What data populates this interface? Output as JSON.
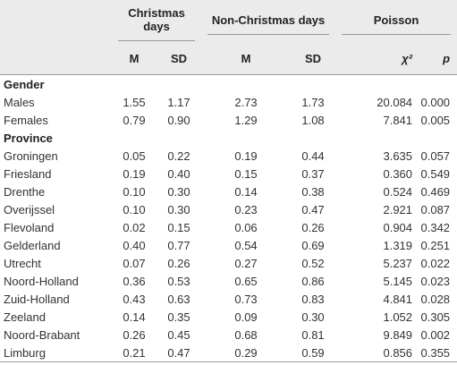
{
  "table": {
    "groups": [
      "Christmas days",
      "Non-Christmas days",
      "Poisson"
    ],
    "columns": [
      "M",
      "SD",
      "M",
      "SD",
      "χ²",
      "p"
    ],
    "sections": [
      {
        "title": "Gender",
        "rows": [
          {
            "label": "Males",
            "values": [
              "1.55",
              "1.17",
              "2.73",
              "1.73",
              "20.084",
              "0.000"
            ]
          },
          {
            "label": "Females",
            "values": [
              "0.79",
              "0.90",
              "1.29",
              "1.08",
              "7.841",
              "0.005"
            ]
          }
        ]
      },
      {
        "title": "Province",
        "rows": [
          {
            "label": "Groningen",
            "values": [
              "0.05",
              "0.22",
              "0.19",
              "0.44",
              "3.635",
              "0.057"
            ]
          },
          {
            "label": "Friesland",
            "values": [
              "0.19",
              "0.40",
              "0.15",
              "0.37",
              "0.360",
              "0.549"
            ]
          },
          {
            "label": "Drenthe",
            "values": [
              "0.10",
              "0.30",
              "0.14",
              "0.38",
              "0.524",
              "0.469"
            ]
          },
          {
            "label": "Overijssel",
            "values": [
              "0.10",
              "0.30",
              "0.23",
              "0.47",
              "2.921",
              "0.087"
            ]
          },
          {
            "label": "Flevoland",
            "values": [
              "0.02",
              "0.15",
              "0.06",
              "0.26",
              "0.904",
              "0.342"
            ]
          },
          {
            "label": "Gelderland",
            "values": [
              "0.40",
              "0.77",
              "0.54",
              "0.69",
              "1.319",
              "0.251"
            ]
          },
          {
            "label": "Utrecht",
            "values": [
              "0.07",
              "0.26",
              "0.27",
              "0.52",
              "5.237",
              "0.022"
            ]
          },
          {
            "label": "Noord-Holland",
            "values": [
              "0.36",
              "0.53",
              "0.65",
              "0.86",
              "5.145",
              "0.023"
            ]
          },
          {
            "label": "Zuid-Holland",
            "values": [
              "0.43",
              "0.63",
              "0.73",
              "0.83",
              "4.841",
              "0.028"
            ]
          },
          {
            "label": "Zeeland",
            "values": [
              "0.14",
              "0.35",
              "0.09",
              "0.30",
              "1.052",
              "0.305"
            ]
          },
          {
            "label": "Noord-Brabant",
            "values": [
              "0.26",
              "0.45",
              "0.68",
              "0.81",
              "9.849",
              "0.002"
            ]
          },
          {
            "label": "Limburg",
            "values": [
              "0.21",
              "0.47",
              "0.29",
              "0.59",
              "0.856",
              "0.355"
            ]
          }
        ]
      }
    ]
  }
}
